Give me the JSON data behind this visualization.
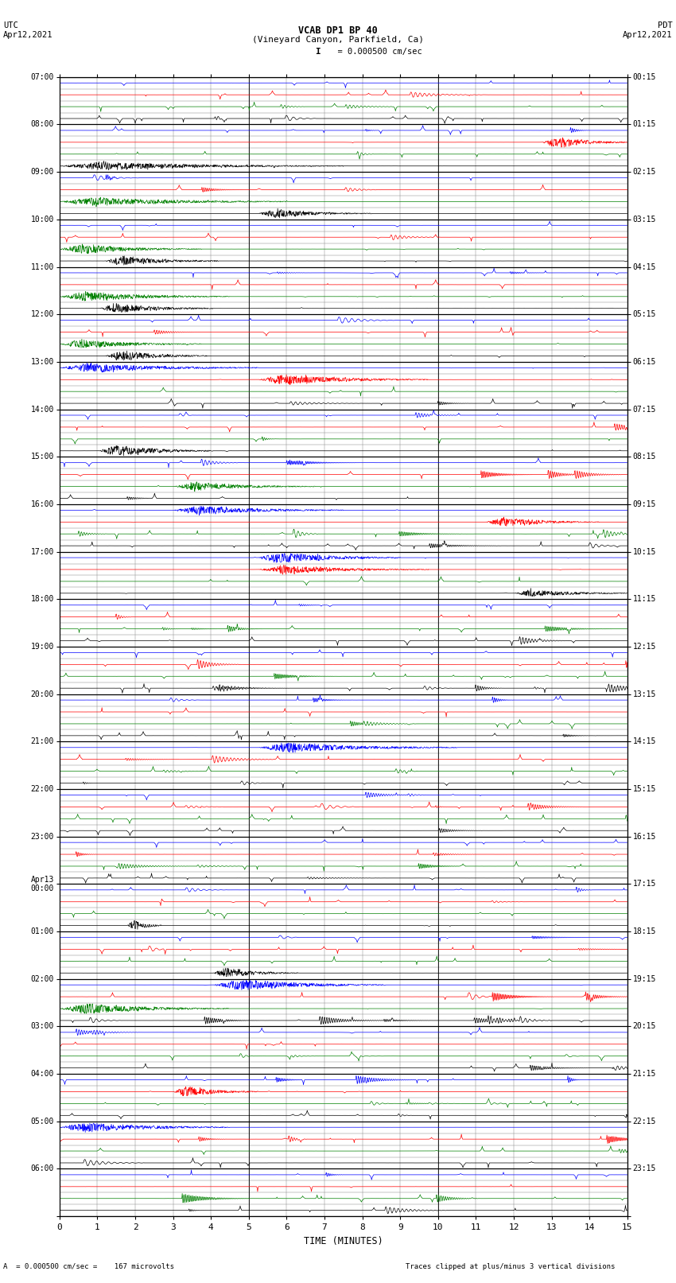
{
  "title_line1": "VCAB DP1 BP 40",
  "title_line2": "(Vineyard Canyon, Parkfield, Ca)",
  "scale_label": "  = 0.000500 cm/sec",
  "utc_label": "UTC\nApr12,2021",
  "pdt_label": "PDT\nApr12,2021",
  "xlabel": "TIME (MINUTES)",
  "bottom_left": "A  = 0.000500 cm/sec =    167 microvolts",
  "bottom_right": "Traces clipped at plus/minus 3 vertical divisions",
  "num_blocks": 24,
  "subrows_per_block": 4,
  "x_max": 15,
  "fig_width": 8.5,
  "fig_height": 16.13,
  "background_color": "#ffffff",
  "grid_major_color": "#000000",
  "grid_minor_color": "#888888",
  "trace_colors": [
    "#0000ff",
    "#ff0000",
    "#008000",
    "#000000"
  ],
  "left_times": [
    "07:00",
    "08:00",
    "09:00",
    "10:00",
    "11:00",
    "12:00",
    "13:00",
    "14:00",
    "15:00",
    "16:00",
    "17:00",
    "18:00",
    "19:00",
    "20:00",
    "21:00",
    "22:00",
    "23:00",
    "Apr13\n00:00",
    "01:00",
    "02:00",
    "03:00",
    "04:00",
    "05:00",
    "06:00"
  ],
  "right_times": [
    "00:15",
    "01:15",
    "02:15",
    "03:15",
    "04:15",
    "05:15",
    "06:15",
    "07:15",
    "08:15",
    "09:15",
    "10:15",
    "11:15",
    "12:15",
    "13:15",
    "14:15",
    "15:15",
    "16:15",
    "17:15",
    "18:15",
    "19:15",
    "20:15",
    "21:15",
    "22:15",
    "23:15"
  ],
  "noise_seed": 7
}
